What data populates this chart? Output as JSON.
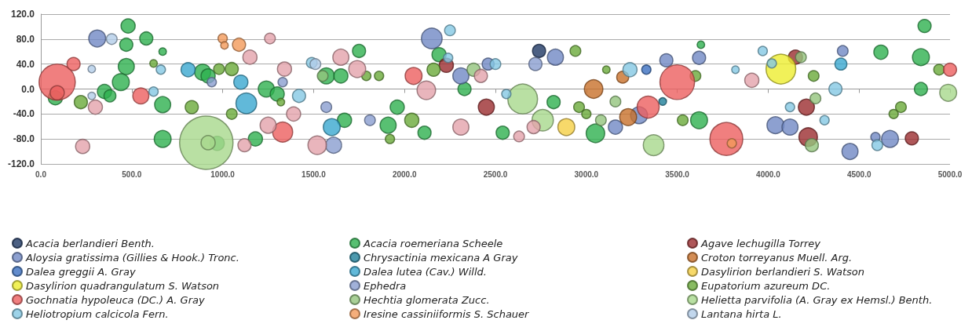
{
  "chart_data": {
    "type": "bubble",
    "relative": false,
    "marker": "circle",
    "grid": "y",
    "legend": "bottom",
    "xlim": [
      0,
      5000
    ],
    "xticks": [
      {
        "value": 0,
        "label": "0.0"
      },
      {
        "value": 500,
        "label": "500.0"
      },
      {
        "value": 1000,
        "label": "1000.0"
      },
      {
        "value": 1500,
        "label": "1500.0"
      },
      {
        "value": 2000,
        "label": "2000.0"
      },
      {
        "value": 2500,
        "label": "2500.0"
      },
      {
        "value": 3000,
        "label": "3000.0"
      },
      {
        "value": 3500,
        "label": "3500.0"
      },
      {
        "value": 4000,
        "label": "4000.0"
      },
      {
        "value": 4500,
        "label": "4500.0"
      },
      {
        "value": 5000,
        "label": "5000.0"
      }
    ],
    "ylim": [
      -120,
      120
    ],
    "yticks": [
      {
        "value": -120,
        "label": "-120.0"
      },
      {
        "value": -80,
        "label": "-80.0"
      },
      {
        "value": -40,
        "label": "-40.0"
      },
      {
        "value": 0,
        "label": "0.0"
      },
      {
        "value": 40,
        "label": "40.0"
      },
      {
        "value": 80,
        "label": "80.0"
      },
      {
        "value": 120,
        "label": "120.0"
      }
    ],
    "series": [
      {
        "name": "Acacia berlandieri Benth.",
        "color": "#1f3864",
        "x": [
          2740
        ],
        "values": [
          61
        ],
        "sizes": [
          0.06
        ]
      },
      {
        "name": "Acacia roemeriana Scheele",
        "color": "#2eb04f",
        "x": [
          480,
          580,
          470,
          670,
          470,
          440,
          350,
          380,
          80,
          670,
          670,
          890,
          920,
          970,
          1180,
          1240,
          1300,
          1570,
          1650,
          1750,
          1670,
          1910,
          2190,
          1960,
          2110,
          2330,
          2540,
          2820,
          3050,
          3620,
          3630,
          4620,
          4840,
          4860,
          4840
        ],
        "values": [
          101,
          81,
          71,
          60,
          36,
          11,
          -4,
          -11,
          -14,
          -25,
          -80,
          27,
          21,
          -87,
          -80,
          0,
          -8,
          21,
          21,
          61,
          -50,
          -58,
          55,
          -29,
          -70,
          0,
          -70,
          -21,
          -71,
          -50,
          71,
          59,
          51,
          101,
          0
        ],
        "sizes": [
          0.07,
          0.06,
          0.06,
          0.02,
          0.09,
          0.1,
          0.07,
          0.05,
          0.07,
          0.09,
          0.1,
          0.09,
          0.07,
          0.07,
          0.07,
          0.09,
          0.07,
          0.09,
          0.07,
          0.06,
          0.07,
          0.09,
          0.07,
          0.07,
          0.06,
          0.06,
          0.06,
          0.06,
          0.12,
          0.1,
          0.02,
          0.07,
          0.1,
          0.06,
          0.06
        ]
      },
      {
        "name": "Agave lechugilla Torrey",
        "color": "#9b2d30",
        "x": [
          2230,
          2450,
          4150,
          4210,
          4220,
          4790
        ],
        "values": [
          38,
          -29,
          51,
          -29,
          -77,
          -79
        ],
        "sizes": [
          0.07,
          0.09,
          0.07,
          0.09,
          0.12,
          0.06
        ]
      },
      {
        "name": "Aloysia gratissima (Gillies & Hook.) Tronc.",
        "color": "#7088c4",
        "x": [
          310,
          2310,
          2460,
          2830,
          3160,
          3440,
          3620,
          4040,
          4120,
          4410,
          4450,
          4670,
          4590,
          3290,
          2150
        ],
        "values": [
          81,
          21,
          40,
          51,
          -61,
          46,
          50,
          -58,
          -61,
          61,
          -100,
          -80,
          -77,
          -42,
          81
        ],
        "sizes": [
          0.1,
          0.09,
          0.05,
          0.09,
          0.07,
          0.06,
          0.06,
          0.1,
          0.09,
          0.04,
          0.09,
          0.1,
          0.03,
          0.1,
          0.15
        ]
      },
      {
        "name": "Chrysactinia mexicana A Gray",
        "color": "#1f7f9a",
        "x": [
          3420
        ],
        "values": [
          -20
        ],
        "sizes": [
          0.02
        ]
      },
      {
        "name": "Croton torreyanus Muell. Arg.",
        "color": "#c8702a",
        "x": [
          3040,
          3200,
          3230
        ],
        "values": [
          0,
          19,
          -45
        ],
        "sizes": [
          0.12,
          0.05,
          0.1
        ]
      },
      {
        "name": "Dalea greggii A. Gray",
        "color": "#3b6fc0",
        "x": [
          3330
        ],
        "values": [
          31
        ],
        "sizes": [
          0.03
        ]
      },
      {
        "name": "Dalea lutea (Cav.) Willd.",
        "color": "#3aa8d0",
        "x": [
          810,
          1100,
          1130,
          1600,
          4400
        ],
        "values": [
          31,
          11,
          -23,
          -61,
          40
        ],
        "sizes": [
          0.07,
          0.07,
          0.15,
          0.1,
          0.05
        ]
      },
      {
        "name": "Dasylirion berlandieri S. Watson",
        "color": "#f5cf45",
        "x": [
          2890
        ],
        "values": [
          -61
        ],
        "sizes": [
          0.1
        ]
      },
      {
        "name": "Dasylirion quadrangulatum S. Watson",
        "color": "#eeee30",
        "x": [
          4070
        ],
        "values": [
          32
        ],
        "sizes": [
          0.31
        ]
      },
      {
        "name": "Ephedra",
        "color": "#8a9ed0",
        "x": [
          1610,
          1570,
          1810,
          1330,
          940,
          2720
        ],
        "values": [
          -90,
          -29,
          -50,
          11,
          11,
          40
        ],
        "sizes": [
          0.09,
          0.04,
          0.04,
          0.03,
          0.03,
          0.06
        ]
      },
      {
        "name": "Eupatorium azureum DC.",
        "color": "#6aaa3a",
        "x": [
          220,
          620,
          830,
          980,
          1050,
          1050,
          1790,
          1860,
          1920,
          1320,
          2160,
          2040,
          2940,
          3110,
          2960,
          3000,
          3600,
          3530,
          4250,
          4730,
          4690,
          4940
        ],
        "values": [
          -21,
          41,
          -29,
          32,
          32,
          -40,
          21,
          21,
          -80,
          -21,
          31,
          -50,
          61,
          31,
          -29,
          -40,
          21,
          -50,
          21,
          -29,
          -40,
          31
        ],
        "sizes": [
          0.06,
          0.02,
          0.06,
          0.04,
          0.06,
          0.04,
          0.03,
          0.03,
          0.03,
          0.02,
          0.06,
          0.07,
          0.04,
          0.02,
          0.04,
          0.03,
          0.04,
          0.04,
          0.04,
          0.04,
          0.03,
          0.04
        ]
      },
      {
        "name": "Gochnatia hypoleuca (DC.) A. Gray",
        "color": "#ec5f5f",
        "x": [
          90,
          90,
          180,
          550,
          1330,
          2050,
          3500,
          3340,
          3770,
          5000
        ],
        "values": [
          11,
          -6,
          40,
          -11,
          -69,
          21,
          11,
          -29,
          -80,
          31
        ],
        "sizes": [
          0.46,
          0.07,
          0.06,
          0.09,
          0.14,
          0.1,
          0.42,
          0.17,
          0.38,
          0.06
        ]
      },
      {
        "name": "Hechtia glomerata Zucc.",
        "color": "#93c47d",
        "x": [
          2380,
          3160,
          3080,
          4180,
          4260,
          4240,
          1550
        ],
        "values": [
          31,
          -20,
          -50,
          51,
          -15,
          -90,
          21
        ],
        "sizes": [
          0.06,
          0.04,
          0.04,
          0.04,
          0.04,
          0.06,
          0.04
        ]
      },
      {
        "name": "Helietta parvifolia (A. Gray ex Hemsl.) Benth.",
        "color": "#a8d88c",
        "x": [
          910,
          920,
          2650,
          2760,
          3370,
          4990
        ],
        "values": [
          -86,
          -86,
          -16,
          -50,
          -90,
          -6
        ],
        "sizes": [
          1,
          0.07,
          0.31,
          0.16,
          0.15,
          0.1
        ]
      },
      {
        "name": "Heliotropium calcicola Fern.",
        "color": "#84c8e3",
        "x": [
          1420,
          1490,
          2250,
          2500,
          2240,
          2560,
          3240,
          3820,
          660,
          620,
          4370,
          4310,
          4120,
          4600,
          3970,
          4020
        ],
        "values": [
          -11,
          42,
          94,
          40,
          50,
          -8,
          31,
          31,
          31,
          -4,
          0,
          -50,
          -29,
          -90,
          61,
          41
        ],
        "sizes": [
          0.06,
          0.04,
          0.04,
          0.04,
          0.03,
          0.03,
          0.07,
          0.02,
          0.03,
          0.03,
          0.06,
          0.03,
          0.03,
          0.04,
          0.03,
          0.03
        ]
      },
      {
        "name": "Iresine cassiniiformis S. Schauer",
        "color": "#f29a5a",
        "x": [
          1000,
          1010,
          1090,
          3800
        ],
        "values": [
          81,
          70,
          71,
          -87
        ],
        "sizes": [
          0.03,
          0.02,
          0.06,
          0.03
        ]
      },
      {
        "name": "Lantana hirta L.",
        "color": "#b3cde8",
        "x": [
          280,
          390,
          280,
          1510
        ],
        "values": [
          32,
          80,
          -11,
          40
        ],
        "sizes": [
          0.02,
          0.04,
          0.02,
          0.04
        ]
      },
      {
        "color": "#e3a3ab",
        "x": [
          300,
          230,
          1260,
          1150,
          1340,
          1390,
          1250,
          1120,
          1520,
          1650,
          1740,
          2120,
          2310,
          2420,
          2630,
          2710,
          3910
        ],
        "values": [
          -29,
          -92,
          81,
          51,
          32,
          -40,
          -58,
          -90,
          -90,
          51,
          32,
          -2,
          -61,
          21,
          -76,
          -61,
          14
        ],
        "sizes": [
          0.07,
          0.07,
          0.04,
          0.07,
          0.07,
          0.07,
          0.09,
          0.06,
          0.12,
          0.09,
          0.1,
          0.12,
          0.09,
          0.06,
          0.04,
          0.06,
          0.07
        ]
      }
    ]
  }
}
